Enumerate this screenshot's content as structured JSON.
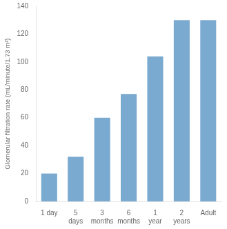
{
  "chart_data": {
    "type": "bar",
    "categories": [
      "1 day",
      "5\ndays",
      "3\nmonths",
      "6\nmonths",
      "1\nyear",
      "2\nyears",
      "Adult"
    ],
    "values": [
      20,
      32,
      60,
      77,
      104,
      130,
      130
    ],
    "color": "#7aaacf",
    "ylabel": "Glomerular filtration rate (mL/minute/1.73 m²)",
    "ylim": [
      0,
      140
    ],
    "yticks": [
      0,
      20,
      40,
      60,
      80,
      100,
      120,
      140
    ],
    "grid": false
  }
}
